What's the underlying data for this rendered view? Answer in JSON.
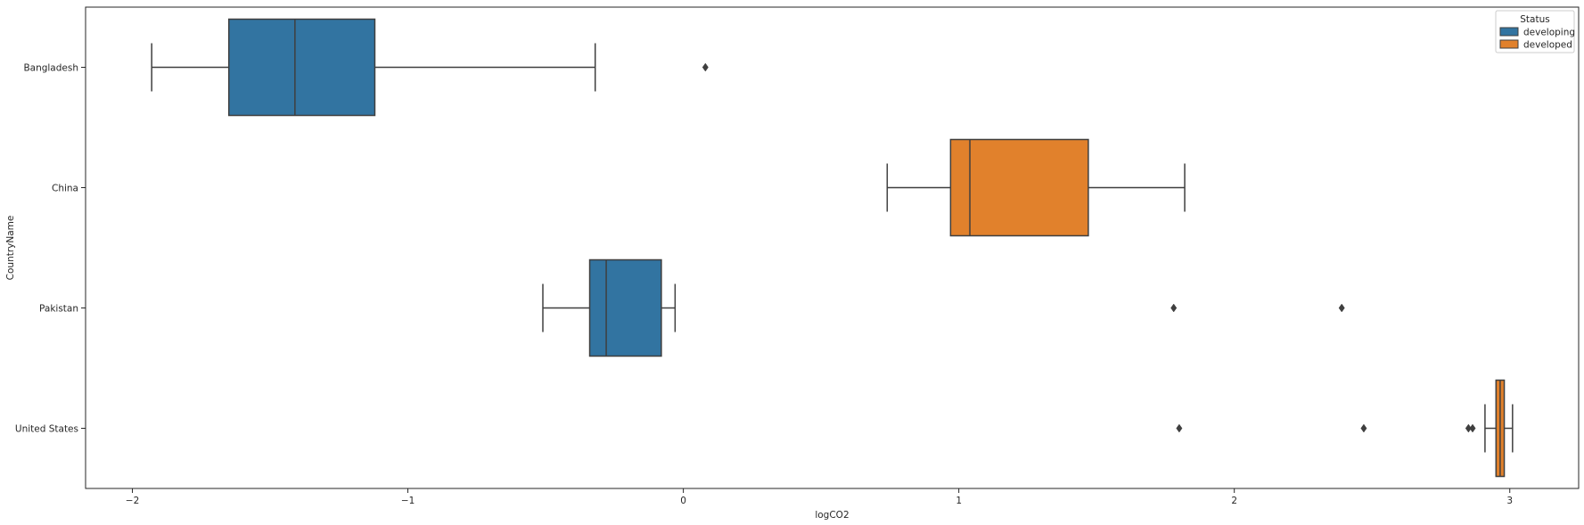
{
  "chart_data": {
    "type": "boxplot",
    "orientation": "horizontal",
    "xlabel": "logCO2",
    "ylabel": "CountryName",
    "xlim": [
      -2.17,
      3.25
    ],
    "xticks": [
      -2,
      -1,
      0,
      1,
      2,
      3
    ],
    "xtick_labels": [
      "−2",
      "−1",
      "0",
      "1",
      "2",
      "3"
    ],
    "categories": [
      "Bangladesh",
      "China",
      "Pakistan",
      "United States"
    ],
    "legend": {
      "title": "Status",
      "position": "top-right",
      "entries": [
        {
          "label": "developing",
          "color": "#3274a1"
        },
        {
          "label": "developed",
          "color": "#e1812c"
        }
      ]
    },
    "boxes": [
      {
        "category": "Bangladesh",
        "status": "developing",
        "whisker_low": -1.93,
        "q1": -1.65,
        "median": -1.41,
        "q3": -1.12,
        "whisker_high": -0.32,
        "outliers": [
          0.08
        ]
      },
      {
        "category": "China",
        "status": "developed",
        "whisker_low": 0.74,
        "q1": 0.97,
        "median": 1.04,
        "q3": 1.47,
        "whisker_high": 1.82,
        "outliers": []
      },
      {
        "category": "Pakistan",
        "status": "developing",
        "whisker_low": -0.51,
        "q1": -0.34,
        "median": -0.28,
        "q3": -0.08,
        "whisker_high": -0.03,
        "outliers": [
          1.78,
          2.39
        ]
      },
      {
        "category": "United States",
        "status": "developed",
        "whisker_low": 2.91,
        "q1": 2.95,
        "median": 2.965,
        "q3": 2.98,
        "whisker_high": 3.01,
        "outliers": [
          1.8,
          2.47,
          2.85,
          2.865
        ]
      }
    ],
    "grid": false
  }
}
